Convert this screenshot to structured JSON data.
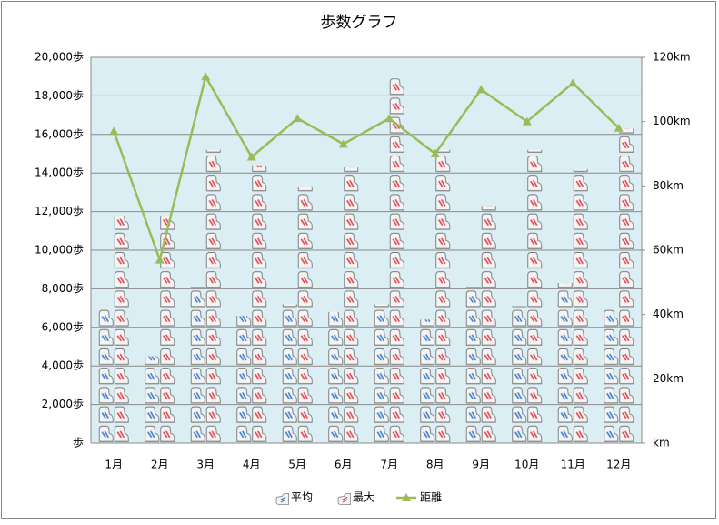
{
  "chart_data": {
    "type": "pictograph-bar-line",
    "title": "歩数グラフ",
    "categories": [
      "1月",
      "2月",
      "3月",
      "4月",
      "5月",
      "6月",
      "7月",
      "8月",
      "9月",
      "10月",
      "11月",
      "12月"
    ],
    "series": [
      {
        "name": "平均",
        "color": "#3a7fd0",
        "values": [
          7000,
          4500,
          8100,
          6600,
          7200,
          6800,
          7200,
          6400,
          8100,
          7100,
          8300,
          7000
        ]
      },
      {
        "name": "最大",
        "color": "#e0454f",
        "values": [
          11800,
          11800,
          15200,
          14400,
          13300,
          14300,
          18900,
          15200,
          12300,
          15200,
          14200,
          16300
        ]
      },
      {
        "name": "距離",
        "color": "#9bbb59",
        "axis": "y2",
        "values": [
          97,
          57,
          114,
          89,
          101,
          93,
          101,
          90,
          110,
          100,
          112,
          98
        ]
      }
    ],
    "ylim": [
      0,
      20000
    ],
    "yticks": [
      {
        "value": 0,
        "label": "歩"
      },
      {
        "value": 2000,
        "label": "2,000歩"
      },
      {
        "value": 4000,
        "label": "4,000歩"
      },
      {
        "value": 6000,
        "label": "6,000歩"
      },
      {
        "value": 8000,
        "label": "8,000歩"
      },
      {
        "value": 10000,
        "label": "10,000歩"
      },
      {
        "value": 12000,
        "label": "12,000歩"
      },
      {
        "value": 14000,
        "label": "14,000歩"
      },
      {
        "value": 16000,
        "label": "16,000歩"
      },
      {
        "value": 18000,
        "label": "18,000歩"
      },
      {
        "value": 20000,
        "label": "20,000歩"
      }
    ],
    "y2lim": [
      0,
      120
    ],
    "y2ticks": [
      {
        "value": 0,
        "label": "km"
      },
      {
        "value": 20,
        "label": "20km"
      },
      {
        "value": 40,
        "label": "40km"
      },
      {
        "value": 60,
        "label": "60km"
      },
      {
        "value": 80,
        "label": "80km"
      },
      {
        "value": 100,
        "label": "100km"
      },
      {
        "value": 120,
        "label": "120km"
      }
    ],
    "grid": true,
    "legend": "bottom"
  }
}
